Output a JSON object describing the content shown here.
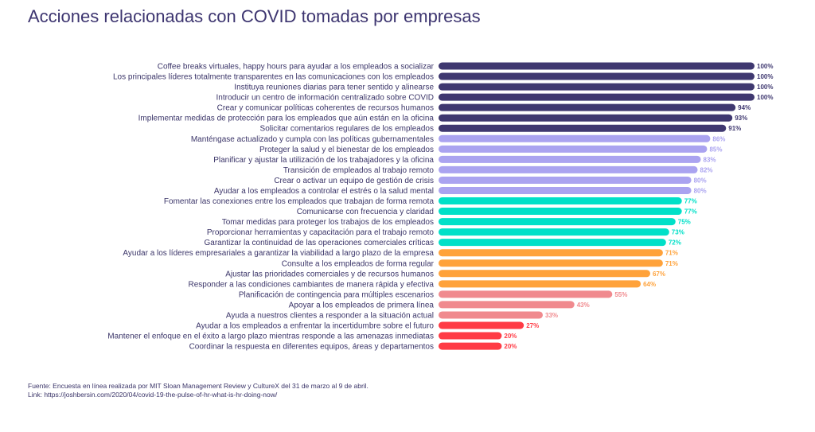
{
  "chart_data": {
    "type": "bar",
    "orientation": "horizontal",
    "title": "Acciones relacionadas con COVID tomadas por empresas",
    "xlim": [
      0,
      100
    ],
    "grid": false,
    "value_suffix": "%",
    "categories": [
      "Coffee breaks virtuales, happy hours para ayudar a los empleados a socializar",
      "Los principales líderes totalmente transparentes en las comunicaciones con los empleados",
      "Instituya reuniones diarias para tener sentido y alinearse",
      "Introducir un centro de información centralizado sobre COVID",
      "Crear y comunicar políticas coherentes de recursos humanos",
      "Implementar medidas de protección para los empleados que aún están en la oficina",
      "Solicitar comentarios regulares de los empleados",
      "Manténgase actualizado y cumpla con las políticas gubernamentales",
      "Proteger la salud y el bienestar de los empleados",
      "Planificar y ajustar la utilización de los trabajadores y la oficina",
      "Transición de empleados al trabajo remoto",
      "Crear o activar un equipo de gestión de crisis",
      "Ayudar a los empleados a controlar el estrés o la salud mental",
      "Fomentar las conexiones entre los empleados que trabajan de forma remota",
      "Comunicarse con frecuencia y claridad",
      "Tomar medidas para proteger los trabajos de los empleados",
      "Proporcionar herramientas y capacitación para el trabajo remoto",
      "Garantizar la continuidad de las operaciones comerciales críticas",
      "Ayudar a los líderes empresariales a garantizar la viabilidad a largo plazo de la empresa",
      "Consulte a los empleados de forma regular",
      "Ajustar las prioridades comerciales y de recursos humanos",
      "Responder a las condiciones cambiantes de manera rápida y efectiva",
      "Planificación de contingencia para múltiples escenarios",
      "Apoyar a los empleados de primera línea",
      "Ayuda a nuestros clientes a responder a la situación actual",
      "Ayudar a los empleados a enfrentar la incertidumbre sobre el futuro",
      "Mantener el enfoque en el éxito a largo plazo mientras responde a las amenazas inmediatas",
      "Coordinar la respuesta en diferentes equipos, áreas y departamentos"
    ],
    "values": [
      100,
      100,
      100,
      100,
      94,
      93,
      91,
      86,
      85,
      83,
      82,
      80,
      80,
      77,
      77,
      75,
      73,
      72,
      71,
      71,
      67,
      64,
      55,
      43,
      33,
      27,
      20,
      20
    ],
    "colors": [
      "#3f3870",
      "#3f3870",
      "#3f3870",
      "#3f3870",
      "#3f3870",
      "#3f3870",
      "#3f3870",
      "#aaa3f0",
      "#aaa3f0",
      "#aaa3f0",
      "#aaa3f0",
      "#aaa3f0",
      "#aaa3f0",
      "#00e0c8",
      "#00e0c8",
      "#00e0c8",
      "#00e0c8",
      "#00e0c8",
      "#ffa23a",
      "#ffa23a",
      "#ffa23a",
      "#ffa23a",
      "#f08a8e",
      "#f08a8e",
      "#f08a8e",
      "#ff3b45",
      "#ff3b45",
      "#ff3b45"
    ]
  },
  "footer": {
    "source": "Fuente:   Encuesta en línea realizada por MIT Sloan Management Review y CultureX del 31 de marzo al 9 de abril.",
    "link": "Link: https://joshbersin.com/2020/04/covid-19-the-pulse-of-hr-what-is-hr-doing-now/"
  }
}
